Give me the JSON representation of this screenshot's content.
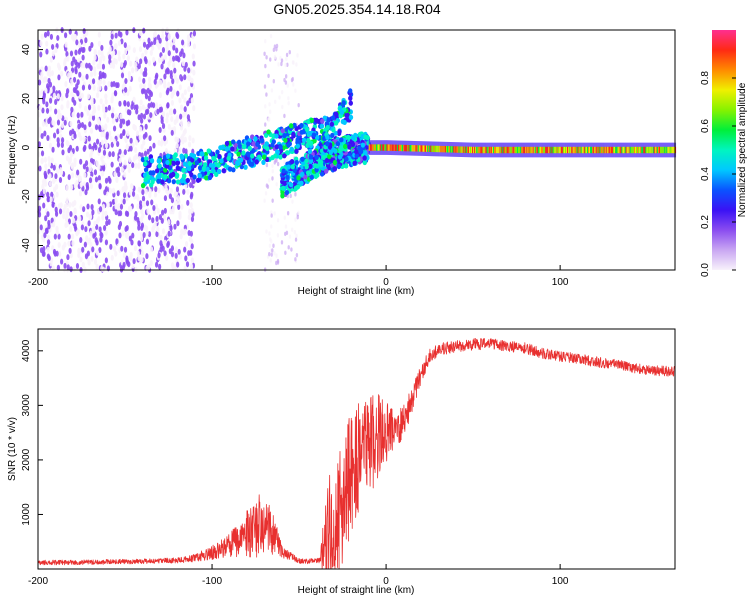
{
  "title": "GN05.2025.354.14.18.R04",
  "colors": {
    "snr_line": "#e8302f",
    "colorbar": [
      "#f8f2fb",
      "#c9a6f2",
      "#8a4cf0",
      "#3a12f5",
      "#0a53ff",
      "#00c8ff",
      "#00f5c0",
      "#00ef3a",
      "#86f200",
      "#f0f000",
      "#ff8a00",
      "#ff2a14",
      "#ff2f8f"
    ]
  },
  "chart_data": [
    {
      "type": "heatmap",
      "name": "spectrogram",
      "xlabel": "Height of straight line (km)",
      "ylabel": "Frequency (Hz)",
      "xlim": [
        -200,
        166
      ],
      "ylim": [
        -50,
        48
      ],
      "xticks": [
        -200,
        -100,
        0,
        100
      ],
      "yticks": [
        -40,
        -20,
        0,
        20,
        40
      ],
      "colorbar": {
        "label": "Normalized spectral amplitude",
        "range": [
          0,
          1
        ],
        "ticks": [
          "0.0",
          "0.2",
          "0.4",
          "0.6",
          "0.8"
        ]
      },
      "features": [
        {
          "desc": "diffuse low-amplitude noise",
          "x_range": [
            -200,
            -110
          ],
          "y_range": [
            -50,
            48
          ],
          "amplitude": 0.18
        },
        {
          "desc": "sparse vertical noise band",
          "x_range": [
            -70,
            -50
          ],
          "y_range": [
            -50,
            48
          ],
          "amplitude": 0.08
        },
        {
          "desc": "upper Doppler branch",
          "x": [
            -140,
            -110,
            -80,
            -50,
            -30,
            -20
          ],
          "y": [
            -10,
            -8,
            -2,
            4,
            8,
            18
          ],
          "amplitude": 0.35
        },
        {
          "desc": "lower Doppler branch",
          "x": [
            -60,
            -50,
            -40,
            -30,
            -20,
            -10
          ],
          "y": [
            -14,
            -10,
            -6,
            -3,
            -1,
            0
          ],
          "amplitude": 0.35
        },
        {
          "desc": "main carrier tone",
          "x": [
            -10,
            0,
            50,
            100,
            166
          ],
          "y": [
            0,
            0,
            -1,
            -1,
            -1
          ],
          "amplitude": 0.75
        }
      ]
    },
    {
      "type": "line",
      "name": "snr",
      "xlabel": "Height of straight line (km)",
      "ylabel": "SNR (10 * v/v)",
      "xlim": [
        -200,
        166
      ],
      "ylim": [
        0,
        4400
      ],
      "xticks": [
        -200,
        -100,
        0,
        100
      ],
      "yticks": [
        1000,
        2000,
        3000,
        4000
      ],
      "series": [
        {
          "name": "SNR",
          "x": [
            -200,
            -180,
            -160,
            -140,
            -120,
            -110,
            -100,
            -90,
            -80,
            -75,
            -70,
            -65,
            -60,
            -55,
            -50,
            -45,
            -38,
            -35,
            -30,
            -25,
            -20,
            -15,
            -10,
            -5,
            0,
            5,
            10,
            15,
            20,
            25,
            30,
            40,
            50,
            60,
            70,
            80,
            90,
            100,
            110,
            120,
            130,
            140,
            150,
            166
          ],
          "y": [
            120,
            120,
            130,
            140,
            160,
            200,
            300,
            420,
            650,
            720,
            850,
            650,
            330,
            230,
            150,
            140,
            160,
            600,
            900,
            1200,
            1700,
            2100,
            2250,
            2450,
            2500,
            2550,
            2700,
            3100,
            3550,
            3900,
            4020,
            4080,
            4120,
            4130,
            4080,
            4050,
            3950,
            3900,
            3860,
            3800,
            3760,
            3700,
            3650,
            3620
          ],
          "noise": [
            45,
            45,
            45,
            45,
            50,
            70,
            130,
            220,
            420,
            550,
            650,
            400,
            120,
            80,
            50,
            45,
            45,
            900,
            1100,
            1150,
            1200,
            1100,
            1000,
            800,
            550,
            420,
            320,
            250,
            180,
            140,
            120,
            110,
            110,
            100,
            100,
            100,
            100,
            95,
            95,
            95,
            95,
            95,
            95,
            95
          ]
        }
      ]
    }
  ]
}
